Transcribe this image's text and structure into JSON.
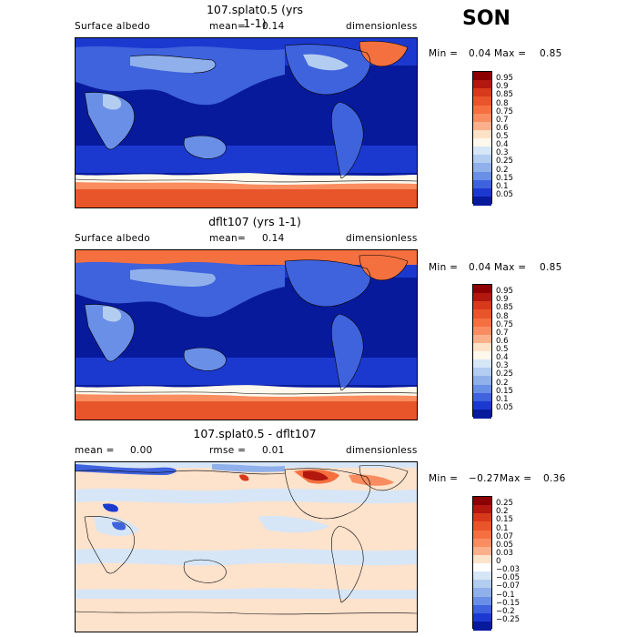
{
  "season": "SON",
  "panels": [
    {
      "title": "107.splat0.5 (yrs 1-1)",
      "left_label": "Surface albedo",
      "mean_label": "mean=",
      "mean_value": "0.14",
      "units": "dimensionless",
      "min_label": "Min =",
      "min_value": "0.04",
      "max_label": "Max =",
      "max_value": "0.85",
      "kind": "abs"
    },
    {
      "title": "dflt107 (yrs 1-1)",
      "left_label": "Surface albedo",
      "mean_label": "mean=",
      "mean_value": "0.14",
      "units": "dimensionless",
      "min_label": "Min =",
      "min_value": "0.04",
      "max_label": "Max =",
      "max_value": "0.85",
      "kind": "abs"
    },
    {
      "title": "107.splat0.5 - dflt107",
      "left_label": "mean =",
      "left_value": "0.00",
      "mean_label": "rmse =",
      "mean_value": "0.01",
      "units": "dimensionless",
      "min_label": "Min =",
      "min_value": "−0.27",
      "max_label": "Max =",
      "max_value": "0.36",
      "kind": "diff"
    }
  ],
  "colorbar_abs": {
    "labels": [
      "0.95",
      "0.9",
      "0.85",
      "0.8",
      "0.75",
      "0.7",
      "0.6",
      "0.5",
      "0.4",
      "0.3",
      "0.25",
      "0.2",
      "0.15",
      "0.1",
      "0.05"
    ],
    "colors": [
      "#8b0000",
      "#b2180e",
      "#d73a1a",
      "#e8552a",
      "#f4703f",
      "#f98d60",
      "#fbb08b",
      "#fde2c8",
      "#fff8ec",
      "#d6e6f7",
      "#b3cdf0",
      "#8fb0ea",
      "#6a8fe6",
      "#3f62dd",
      "#1c39cf",
      "#081a9c"
    ]
  },
  "colorbar_diff": {
    "labels": [
      "0.25",
      "0.2",
      "0.15",
      "0.1",
      "0.07",
      "0.05",
      "0.03",
      "0",
      "−0.03",
      "−0.05",
      "−0.07",
      "−0.1",
      "−0.15",
      "−0.2",
      "−0.25"
    ],
    "colors": [
      "#8b0000",
      "#b2180e",
      "#d73a1a",
      "#e8552a",
      "#f4703f",
      "#f98d60",
      "#fbb08b",
      "#fde2cc",
      "#ffffff",
      "#d6e6f7",
      "#b3cdf0",
      "#8fb0ea",
      "#6a8fe6",
      "#3f62dd",
      "#1c39cf",
      "#081a9c"
    ]
  },
  "chart_data": [
    {
      "type": "heatmap",
      "title": "107.splat0.5 (yrs 1-1)",
      "variable": "Surface albedo",
      "units": "dimensionless",
      "mean": 0.14,
      "min": 0.04,
      "max": 0.85,
      "contour_levels": [
        0.05,
        0.1,
        0.15,
        0.2,
        0.25,
        0.3,
        0.4,
        0.5,
        0.6,
        0.7,
        0.75,
        0.8,
        0.85,
        0.9,
        0.95
      ]
    },
    {
      "type": "heatmap",
      "title": "dflt107 (yrs 1-1)",
      "variable": "Surface albedo",
      "units": "dimensionless",
      "mean": 0.14,
      "min": 0.04,
      "max": 0.85,
      "contour_levels": [
        0.05,
        0.1,
        0.15,
        0.2,
        0.25,
        0.3,
        0.4,
        0.5,
        0.6,
        0.7,
        0.75,
        0.8,
        0.85,
        0.9,
        0.95
      ]
    },
    {
      "type": "heatmap",
      "title": "107.splat0.5 - dflt107",
      "units": "dimensionless",
      "mean": 0.0,
      "rmse": 0.01,
      "min": -0.27,
      "max": 0.36,
      "contour_levels": [
        -0.25,
        -0.2,
        -0.15,
        -0.1,
        -0.07,
        -0.05,
        -0.03,
        0,
        0.03,
        0.05,
        0.07,
        0.1,
        0.15,
        0.2,
        0.25
      ]
    }
  ]
}
